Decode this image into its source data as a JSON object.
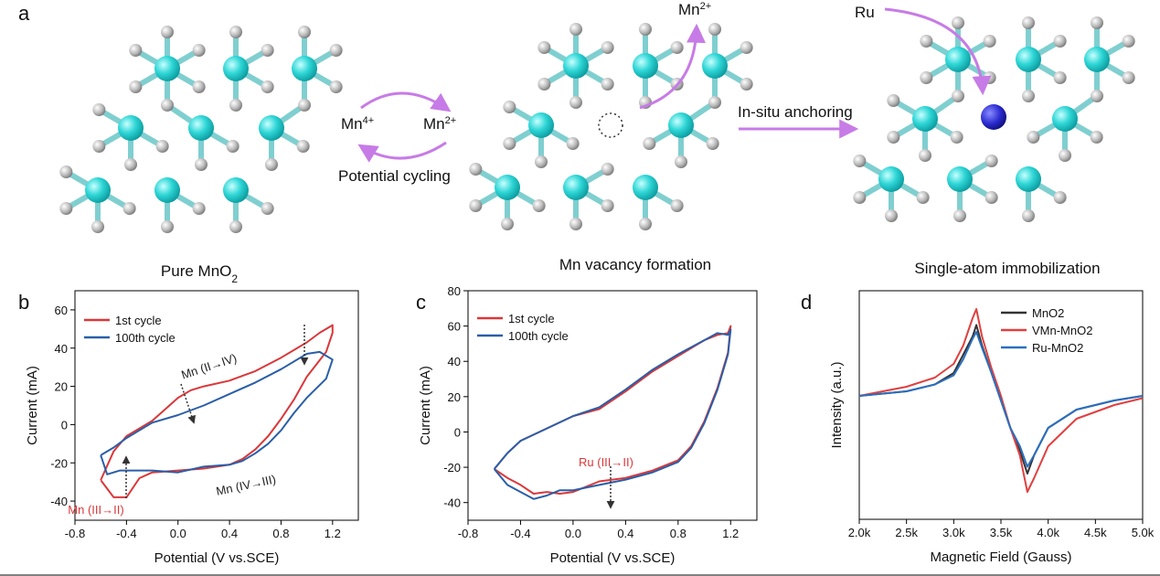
{
  "panel_a": {
    "label": "a",
    "pure": {
      "text": "Pure MnO",
      "sub": "2"
    },
    "vacancy": "Mn vacancy formation",
    "single": "Single-atom immobilization",
    "mn4": {
      "text": "Mn",
      "sup": "4+"
    },
    "mn2": {
      "text": "Mn",
      "sup": "2+"
    },
    "cycling": "Potential cycling",
    "mn2_out": {
      "text": "Mn",
      "sup": "2+"
    },
    "anchoring": "In-situ anchoring",
    "ru": "Ru"
  },
  "chart_data": [
    {
      "type": "line",
      "panel_label": "b",
      "xlabel": "Potential (V vs.SCE)",
      "ylabel": "Current (mA)",
      "xlim": [
        -0.8,
        1.4
      ],
      "xticks": [
        -0.8,
        -0.4,
        {
          "value": 0,
          "label": "0.0"
        },
        0.4,
        0.8,
        1.2
      ],
      "ylim": [
        -50,
        70
      ],
      "yticks": [
        -40,
        -20,
        0,
        20,
        40,
        60
      ],
      "legend": "top-left",
      "series": [
        {
          "name": "1st cycle",
          "color": "#d9383a",
          "x": [
            -0.6,
            -0.5,
            -0.4,
            -0.3,
            -0.2,
            -0.1,
            0,
            0.1,
            0.2,
            0.4,
            0.6,
            0.8,
            1.0,
            1.1,
            1.2,
            1.2,
            1.15,
            1.0,
            0.9,
            0.8,
            0.7,
            0.6,
            0.5,
            0.4,
            0.2,
            0,
            -0.2,
            -0.3,
            -0.4,
            -0.5,
            -0.6
          ],
          "values": [
            -29,
            -14,
            -6,
            -2,
            2,
            8,
            14,
            18,
            20,
            23,
            28,
            35,
            43,
            48,
            52,
            48,
            38,
            25,
            13,
            3,
            -6,
            -13,
            -18,
            -21,
            -23,
            -24,
            -25,
            -28,
            -38,
            -38,
            -29
          ]
        },
        {
          "name": "100th cycle",
          "color": "#2a5ea8",
          "x": [
            -0.6,
            -0.5,
            -0.4,
            -0.3,
            -0.2,
            0,
            0.2,
            0.4,
            0.6,
            0.8,
            1.0,
            1.1,
            1.2,
            1.15,
            1.0,
            0.9,
            0.8,
            0.7,
            0.6,
            0.5,
            0.4,
            0.2,
            0,
            -0.2,
            -0.35,
            -0.45,
            -0.55,
            -0.6
          ],
          "values": [
            -16,
            -12,
            -7,
            -3,
            1,
            5,
            10,
            16,
            22,
            29,
            37,
            38,
            34,
            24,
            14,
            6,
            -3,
            -10,
            -15,
            -19,
            -21,
            -22,
            -25,
            -24,
            -24,
            -24,
            -26,
            -16
          ]
        }
      ],
      "annotations": [
        {
          "text": "Mn (II→IV)",
          "color": "#222222"
        },
        {
          "text": "Mn (IV→III)",
          "color": "#222222"
        },
        {
          "text": "Mn (III→II)",
          "color": "#d9383a"
        }
      ]
    },
    {
      "type": "line",
      "panel_label": "c",
      "xlabel": "Potential (V vs.SCE)",
      "ylabel": "Current (mA)",
      "xlim": [
        -0.8,
        1.4
      ],
      "xticks": [
        -0.8,
        -0.4,
        {
          "value": 0,
          "label": "0.0"
        },
        0.4,
        0.8,
        1.2
      ],
      "ylim": [
        -50,
        80
      ],
      "yticks": [
        -40,
        -20,
        0,
        20,
        40,
        60,
        80
      ],
      "legend": "top-left",
      "series": [
        {
          "name": "1st cycle",
          "color": "#d9383a",
          "x": [
            -0.6,
            -0.5,
            -0.4,
            -0.2,
            0,
            0.2,
            0.4,
            0.6,
            0.8,
            1.0,
            1.1,
            1.18,
            1.2,
            1.18,
            1.1,
            1.0,
            0.9,
            0.8,
            0.6,
            0.4,
            0.2,
            0,
            -0.1,
            -0.2,
            -0.3,
            -0.4,
            -0.5,
            -0.6
          ],
          "values": [
            -21,
            -12,
            -5,
            2,
            9,
            13,
            23,
            34,
            43,
            52,
            55,
            56,
            60,
            45,
            25,
            6,
            -8,
            -16,
            -22,
            -26,
            -28,
            -34,
            -35,
            -34,
            -35,
            -30,
            -26,
            -21
          ]
        },
        {
          "name": "100th cycle",
          "color": "#2a5ea8",
          "x": [
            -0.6,
            -0.5,
            -0.4,
            -0.2,
            0,
            0.2,
            0.4,
            0.6,
            0.8,
            1.0,
            1.1,
            1.18,
            1.2,
            1.18,
            1.1,
            1.0,
            0.9,
            0.8,
            0.6,
            0.4,
            0.2,
            0,
            -0.1,
            -0.2,
            -0.3,
            -0.4,
            -0.5,
            -0.6
          ],
          "values": [
            -21,
            -12,
            -5,
            2,
            9,
            14,
            24,
            35,
            44,
            52,
            56,
            55,
            58,
            44,
            24,
            5,
            -9,
            -17,
            -23,
            -27,
            -30,
            -33,
            -33,
            -36,
            -38,
            -34,
            -30,
            -21
          ]
        }
      ],
      "annotations": [
        {
          "text": "Ru (III→II)",
          "color": "#d9383a"
        }
      ]
    },
    {
      "type": "line",
      "panel_label": "d",
      "xlabel": "Magnetic Field (Gauss)",
      "ylabel": "Intensity (a.u.)",
      "xlim": [
        2000,
        5000
      ],
      "xticks": [
        {
          "value": 2000,
          "label": "2.0k"
        },
        {
          "value": 2500,
          "label": "2.5k"
        },
        {
          "value": 3000,
          "label": "3.0k"
        },
        {
          "value": 3500,
          "label": "3.5k"
        },
        {
          "value": 4000,
          "label": "4.0k"
        },
        {
          "value": 4500,
          "label": "4.5k"
        },
        {
          "value": 5000,
          "label": "5.0k"
        }
      ],
      "ylim": [
        0,
        100
      ],
      "legend": "top-right",
      "x": [
        2000,
        2500,
        2800,
        3000,
        3100,
        3200,
        3240,
        3300,
        3400,
        3500,
        3600,
        3700,
        3780,
        3850,
        4000,
        4300,
        4700,
        5000
      ],
      "series": [
        {
          "name": "MnO2",
          "color": "#333333",
          "values": [
            54,
            56,
            59,
            64,
            72,
            80,
            85,
            76,
            64,
            52,
            40,
            30,
            20,
            28,
            40,
            48,
            52,
            54
          ]
        },
        {
          "name": "VMn-MnO2",
          "color": "#e04040",
          "values": [
            54,
            58,
            62,
            68,
            76,
            88,
            92,
            80,
            66,
            54,
            40,
            28,
            12,
            18,
            32,
            44,
            50,
            53
          ]
        },
        {
          "name": "Ru-MnO2",
          "color": "#2a6fc0",
          "values": [
            54,
            56,
            59,
            63,
            70,
            79,
            82,
            75,
            64,
            52,
            40,
            32,
            23,
            28,
            40,
            48,
            52,
            54
          ]
        }
      ],
      "annotations": []
    }
  ]
}
